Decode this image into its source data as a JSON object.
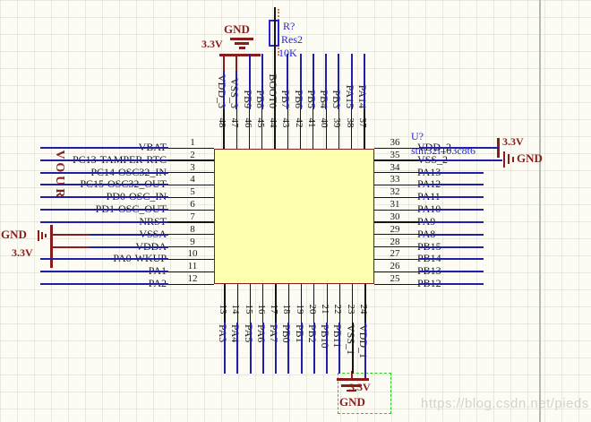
{
  "schematic": {
    "designator": "U?",
    "part_number": "stm32f103c8t6",
    "resistor": {
      "designator": "R?",
      "type": "Res2",
      "value": "10K"
    },
    "net_label_vertical": "VOUR",
    "power_ports": {
      "top": {
        "gnd": "GND",
        "v33": "3.3V"
      },
      "left": {
        "gnd": "GND",
        "v33": "3.3V"
      },
      "right": {
        "gnd": "GND",
        "v33": "3.3V"
      },
      "bottom": {
        "gnd": "GND",
        "v33": "3.3V"
      }
    },
    "colors": {
      "wire": "#1f1fa8",
      "pin": "#141414",
      "power": "#8a1c1c",
      "component_text": "#2626cc",
      "chip_fill": "#ffffb0",
      "chip_border": "#8a1c1c",
      "selection": "#22cc22"
    },
    "pins": {
      "left": [
        {
          "num": "1",
          "name": "VBAT"
        },
        {
          "num": "2",
          "name": "PC13-TAMPER-RTC"
        },
        {
          "num": "3",
          "name": "PC14-OSC32_IN"
        },
        {
          "num": "4",
          "name": "PC15-OSC32_OUT"
        },
        {
          "num": "5",
          "name": "PD0-OSC_IN"
        },
        {
          "num": "6",
          "name": "PD1-OSC_OUT"
        },
        {
          "num": "7",
          "name": "NRST"
        },
        {
          "num": "8",
          "name": "VSSA"
        },
        {
          "num": "9",
          "name": "VDDA"
        },
        {
          "num": "10",
          "name": "PA0-WKUP"
        },
        {
          "num": "11",
          "name": "PA1"
        },
        {
          "num": "12",
          "name": "PA2"
        }
      ],
      "top": [
        {
          "num": "48",
          "name": "VDD_3"
        },
        {
          "num": "47",
          "name": "VSS_3"
        },
        {
          "num": "46",
          "name": "PB9"
        },
        {
          "num": "45",
          "name": "PB8"
        },
        {
          "num": "44",
          "name": "BOOT0"
        },
        {
          "num": "43",
          "name": "PB7"
        },
        {
          "num": "42",
          "name": "PB6"
        },
        {
          "num": "41",
          "name": "PB5"
        },
        {
          "num": "40",
          "name": "PB4"
        },
        {
          "num": "39",
          "name": "PB3"
        },
        {
          "num": "38",
          "name": "PA15"
        },
        {
          "num": "37",
          "name": "PA14"
        }
      ],
      "right": [
        {
          "num": "36",
          "name": "VDD_2"
        },
        {
          "num": "35",
          "name": "VSS_2"
        },
        {
          "num": "34",
          "name": "PA13"
        },
        {
          "num": "33",
          "name": "PA12"
        },
        {
          "num": "32",
          "name": "PA11"
        },
        {
          "num": "31",
          "name": "PA10"
        },
        {
          "num": "30",
          "name": "PA9"
        },
        {
          "num": "29",
          "name": "PA8"
        },
        {
          "num": "28",
          "name": "PB15"
        },
        {
          "num": "27",
          "name": "PB14"
        },
        {
          "num": "26",
          "name": "PB13"
        },
        {
          "num": "25",
          "name": "PB12"
        }
      ],
      "bottom": [
        {
          "num": "13",
          "name": "PA3"
        },
        {
          "num": "14",
          "name": "PA4"
        },
        {
          "num": "15",
          "name": "PA5"
        },
        {
          "num": "16",
          "name": "PA6"
        },
        {
          "num": "17",
          "name": "PA7"
        },
        {
          "num": "18",
          "name": "PB0"
        },
        {
          "num": "19",
          "name": "PB1"
        },
        {
          "num": "20",
          "name": "PB2"
        },
        {
          "num": "21",
          "name": "PB10"
        },
        {
          "num": "22",
          "name": "PB11"
        },
        {
          "num": "23",
          "name": "VSS_1"
        },
        {
          "num": "24",
          "name": "VDD_1"
        }
      ]
    },
    "watermark": "https://blog.csdn.net/pieds"
  }
}
